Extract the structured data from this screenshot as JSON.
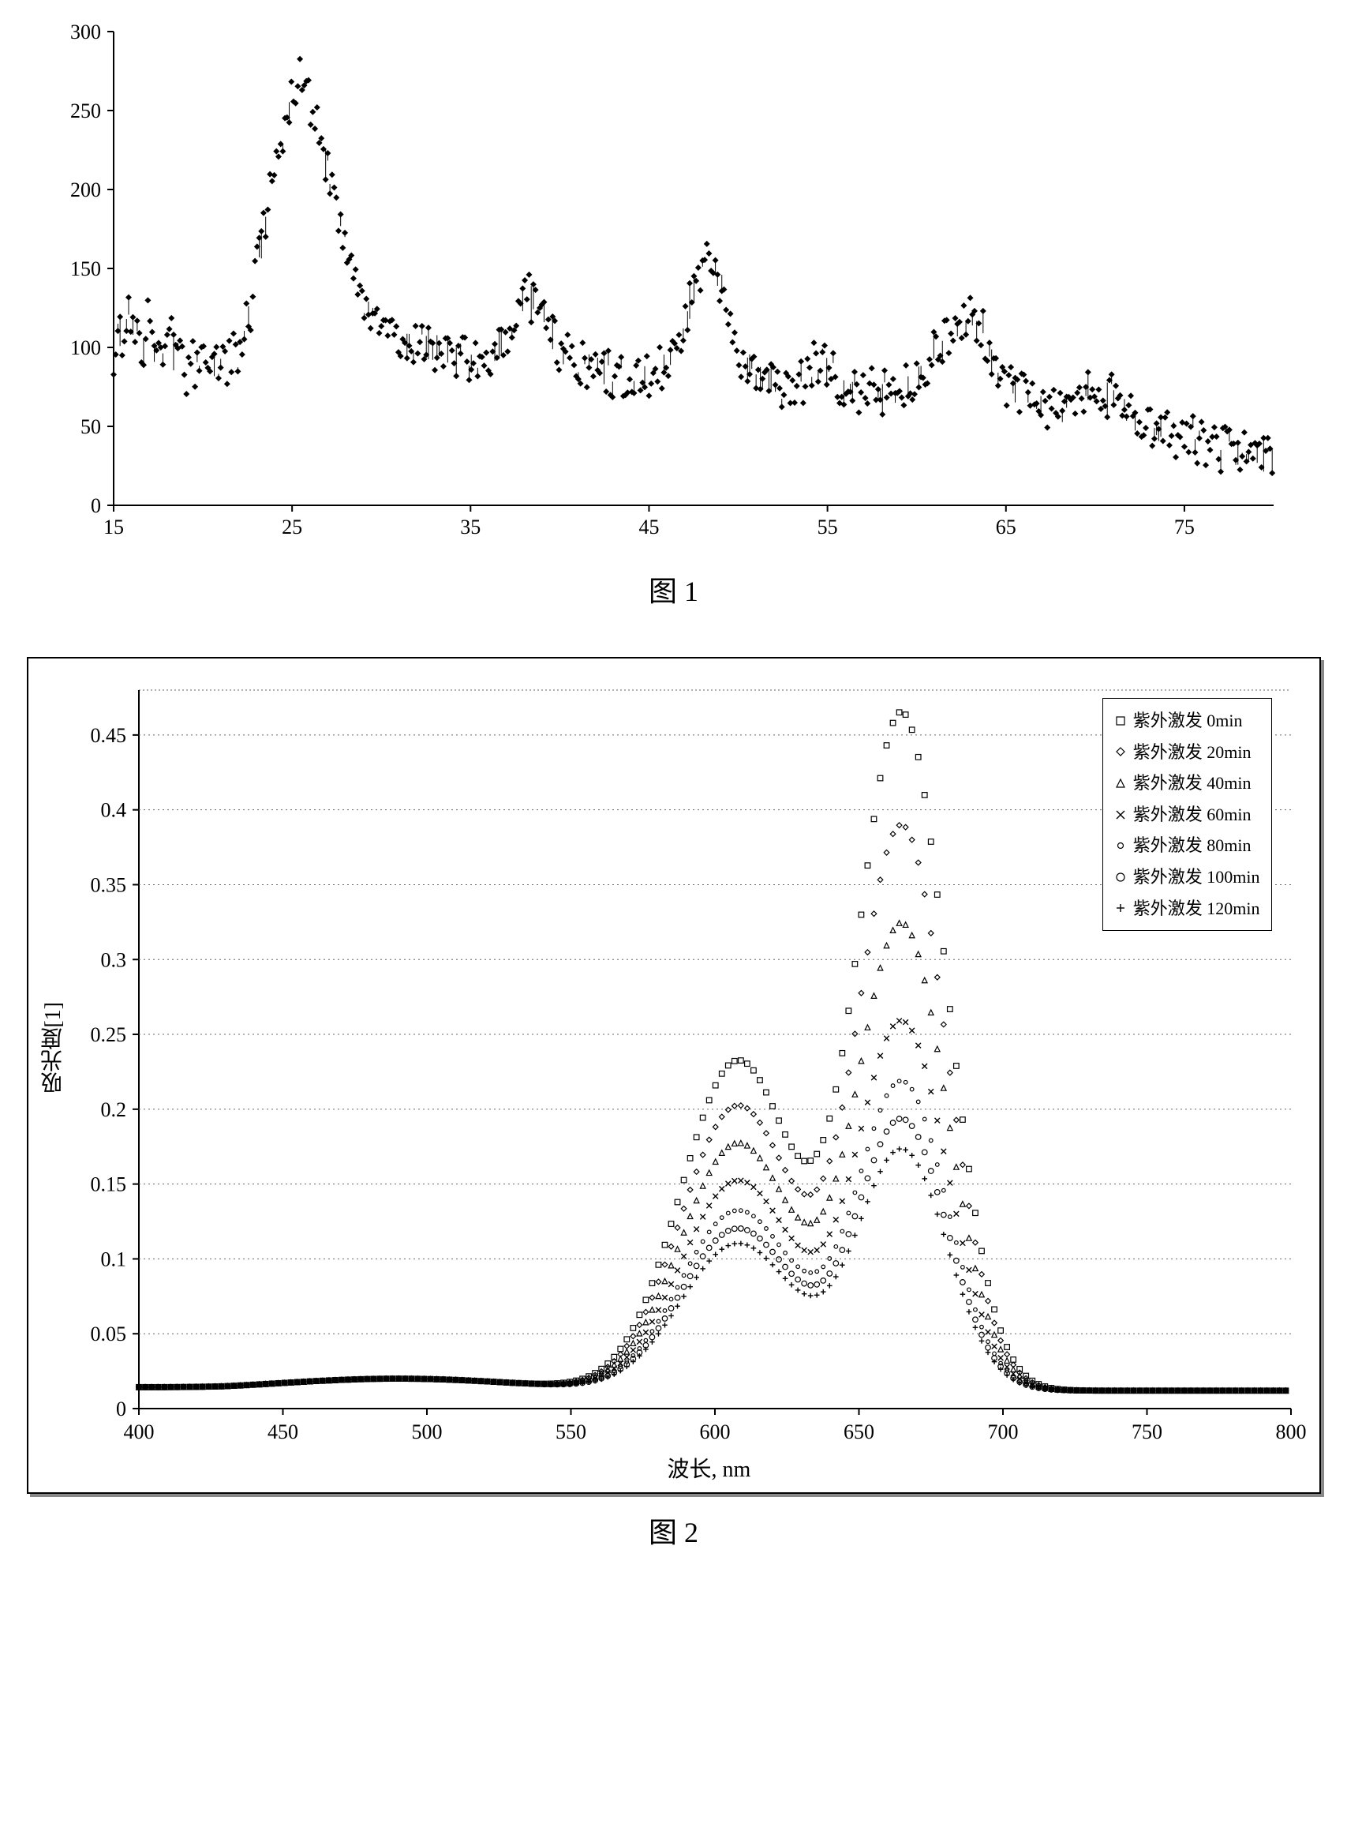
{
  "chart1": {
    "type": "scatter-line",
    "caption": "图 1",
    "xlim": [
      15,
      80
    ],
    "ylim": [
      0,
      300
    ],
    "xticks": [
      15,
      25,
      35,
      45,
      55,
      65,
      75
    ],
    "yticks": [
      0,
      50,
      100,
      150,
      200,
      250,
      300
    ],
    "xtick_labels": [
      "15",
      "25",
      "35",
      "45",
      "55",
      "65",
      "75"
    ],
    "ytick_labels": [
      "0",
      "50",
      "100",
      "150",
      "200",
      "250",
      "300"
    ],
    "marker": "diamond",
    "marker_size": 4,
    "color": "#000000",
    "background_color": "#ffffff",
    "axis_color": "#000000",
    "tick_fontsize": 26,
    "data": [
      [
        15,
        95
      ],
      [
        15.2,
        120
      ],
      [
        15.5,
        100
      ],
      [
        15.8,
        130
      ],
      [
        16,
        105
      ],
      [
        16.3,
        115
      ],
      [
        16.6,
        90
      ],
      [
        16.9,
        125
      ],
      [
        17.2,
        95
      ],
      [
        17.5,
        110
      ],
      [
        17.8,
        85
      ],
      [
        18.1,
        120
      ],
      [
        18.4,
        90
      ],
      [
        18.7,
        105
      ],
      [
        19,
        80
      ],
      [
        19.3,
        100
      ],
      [
        19.6,
        85
      ],
      [
        19.9,
        95
      ],
      [
        20.2,
        80
      ],
      [
        20.5,
        90
      ],
      [
        20.8,
        85
      ],
      [
        21.1,
        95
      ],
      [
        21.4,
        90
      ],
      [
        21.7,
        100
      ],
      [
        22,
        95
      ],
      [
        22.3,
        110
      ],
      [
        22.6,
        120
      ],
      [
        22.9,
        140
      ],
      [
        23.2,
        160
      ],
      [
        23.5,
        180
      ],
      [
        23.8,
        200
      ],
      [
        24.1,
        215
      ],
      [
        24.4,
        230
      ],
      [
        24.7,
        245
      ],
      [
        25,
        255
      ],
      [
        25.3,
        265
      ],
      [
        25.5,
        275
      ],
      [
        25.8,
        260
      ],
      [
        26.1,
        250
      ],
      [
        26.4,
        240
      ],
      [
        26.7,
        225
      ],
      [
        27,
        210
      ],
      [
        27.3,
        195
      ],
      [
        27.6,
        180
      ],
      [
        27.9,
        165
      ],
      [
        28.2,
        155
      ],
      [
        28.5,
        145
      ],
      [
        28.8,
        135
      ],
      [
        29.1,
        128
      ],
      [
        29.4,
        122
      ],
      [
        29.7,
        118
      ],
      [
        30,
        115
      ],
      [
        30.3,
        112
      ],
      [
        30.6,
        110
      ],
      [
        30.9,
        108
      ],
      [
        31.2,
        106
      ],
      [
        31.5,
        105
      ],
      [
        31.8,
        104
      ],
      [
        32.1,
        103
      ],
      [
        32.4,
        102
      ],
      [
        32.7,
        101
      ],
      [
        33,
        100
      ],
      [
        33.5,
        98
      ],
      [
        34,
        96
      ],
      [
        34.5,
        94
      ],
      [
        35,
        92
      ],
      [
        35.5,
        90
      ],
      [
        36,
        92
      ],
      [
        36.5,
        98
      ],
      [
        37,
        108
      ],
      [
        37.5,
        120
      ],
      [
        38,
        128
      ],
      [
        38.3,
        132
      ],
      [
        38.6,
        128
      ],
      [
        38.9,
        122
      ],
      [
        39.2,
        115
      ],
      [
        39.5,
        108
      ],
      [
        39.8,
        102
      ],
      [
        40.1,
        98
      ],
      [
        40.4,
        95
      ],
      [
        40.7,
        92
      ],
      [
        41,
        90
      ],
      [
        41.5,
        88
      ],
      [
        42,
        86
      ],
      [
        42.5,
        84
      ],
      [
        43,
        82
      ],
      [
        43.5,
        80
      ],
      [
        44,
        78
      ],
      [
        44.5,
        80
      ],
      [
        45,
        82
      ],
      [
        45.5,
        85
      ],
      [
        46,
        90
      ],
      [
        46.5,
        100
      ],
      [
        47,
        115
      ],
      [
        47.5,
        135
      ],
      [
        48,
        150
      ],
      [
        48.2,
        158
      ],
      [
        48.5,
        155
      ],
      [
        48.8,
        148
      ],
      [
        49.1,
        138
      ],
      [
        49.4,
        125
      ],
      [
        49.7,
        112
      ],
      [
        50,
        100
      ],
      [
        50.3,
        92
      ],
      [
        50.6,
        88
      ],
      [
        50.9,
        85
      ],
      [
        51.2,
        83
      ],
      [
        51.5,
        82
      ],
      [
        51.8,
        80
      ],
      [
        52.1,
        78
      ],
      [
        52.4,
        76
      ],
      [
        52.7,
        75
      ],
      [
        53,
        74
      ],
      [
        53.5,
        76
      ],
      [
        54,
        85
      ],
      [
        54.5,
        92
      ],
      [
        55,
        88
      ],
      [
        55.5,
        80
      ],
      [
        56,
        76
      ],
      [
        56.5,
        74
      ],
      [
        57,
        73
      ],
      [
        57.5,
        72
      ],
      [
        58,
        71
      ],
      [
        58.5,
        70
      ],
      [
        59,
        72
      ],
      [
        59.5,
        76
      ],
      [
        60,
        82
      ],
      [
        60.5,
        90
      ],
      [
        61,
        98
      ],
      [
        61.5,
        106
      ],
      [
        62,
        112
      ],
      [
        62.5,
        116
      ],
      [
        63,
        118
      ],
      [
        63.3,
        116
      ],
      [
        63.6,
        112
      ],
      [
        63.9,
        106
      ],
      [
        64.2,
        98
      ],
      [
        64.5,
        90
      ],
      [
        64.8,
        82
      ],
      [
        65.1,
        76
      ],
      [
        65.4,
        72
      ],
      [
        65.7,
        70
      ],
      [
        66,
        68
      ],
      [
        66.5,
        66
      ],
      [
        67,
        65
      ],
      [
        67.5,
        63
      ],
      [
        68,
        62
      ],
      [
        68.5,
        60
      ],
      [
        69,
        64
      ],
      [
        69.5,
        70
      ],
      [
        70,
        72
      ],
      [
        70.5,
        72
      ],
      [
        71,
        68
      ],
      [
        71.5,
        62
      ],
      [
        72,
        58
      ],
      [
        72.5,
        52
      ],
      [
        73,
        48
      ],
      [
        73.5,
        46
      ],
      [
        74,
        45
      ],
      [
        74.5,
        44
      ],
      [
        75,
        43
      ],
      [
        75.5,
        42
      ],
      [
        76,
        40
      ],
      [
        76.5,
        38
      ],
      [
        77,
        36
      ],
      [
        77.5,
        34
      ],
      [
        78,
        33
      ],
      [
        78.5,
        32
      ],
      [
        79,
        31
      ],
      [
        79.5,
        30
      ],
      [
        80,
        30
      ]
    ],
    "noise_amplitude": 15
  },
  "chart2": {
    "type": "line-series",
    "caption": "图 2",
    "xlim": [
      400,
      800
    ],
    "ylim": [
      0,
      0.48
    ],
    "xticks": [
      400,
      450,
      500,
      550,
      600,
      650,
      700,
      750,
      800
    ],
    "yticks": [
      0,
      0.05,
      0.1,
      0.15,
      0.2,
      0.25,
      0.3,
      0.35,
      0.4,
      0.45
    ],
    "ytick_labels": [
      "0",
      "0.05",
      "0.1",
      "0.15",
      "0.2",
      "0.25",
      "0.3",
      "0.35",
      "0.4",
      "0.45"
    ],
    "xtick_labels": [
      "400",
      "450",
      "500",
      "550",
      "600",
      "650",
      "700",
      "750",
      "800"
    ],
    "xlabel": "波长, nm",
    "ylabel": "吸光度[1]",
    "marker_size": 6,
    "color": "#000000",
    "background_color": "#ffffff",
    "grid_color": "#666666",
    "grid_style": "dotted",
    "tick_fontsize": 26,
    "label_fontsize": 28,
    "legend_position": "top-right",
    "legend_fontsize": 22,
    "legend_border": "#000000",
    "series": [
      {
        "label": "紫外激发 0min",
        "marker": "square",
        "peak": 0.45,
        "shoulder": 0.22
      },
      {
        "label": "紫外激发 20min",
        "marker": "diamond",
        "peak": 0.375,
        "shoulder": 0.19
      },
      {
        "label": "紫外激发 40min",
        "marker": "triangle",
        "peak": 0.31,
        "shoulder": 0.165
      },
      {
        "label": "紫外激发 60min",
        "marker": "x",
        "peak": 0.245,
        "shoulder": 0.14
      },
      {
        "label": "紫外激发 80min",
        "marker": "circle-small",
        "peak": 0.205,
        "shoulder": 0.12
      },
      {
        "label": "紫外激发 100min",
        "marker": "circle",
        "peak": 0.18,
        "shoulder": 0.108
      },
      {
        "label": "紫外激发 120min",
        "marker": "plus",
        "peak": 0.16,
        "shoulder": 0.098
      }
    ],
    "peak_x": 665,
    "shoulder_x": 608,
    "baseline": 0.012
  }
}
